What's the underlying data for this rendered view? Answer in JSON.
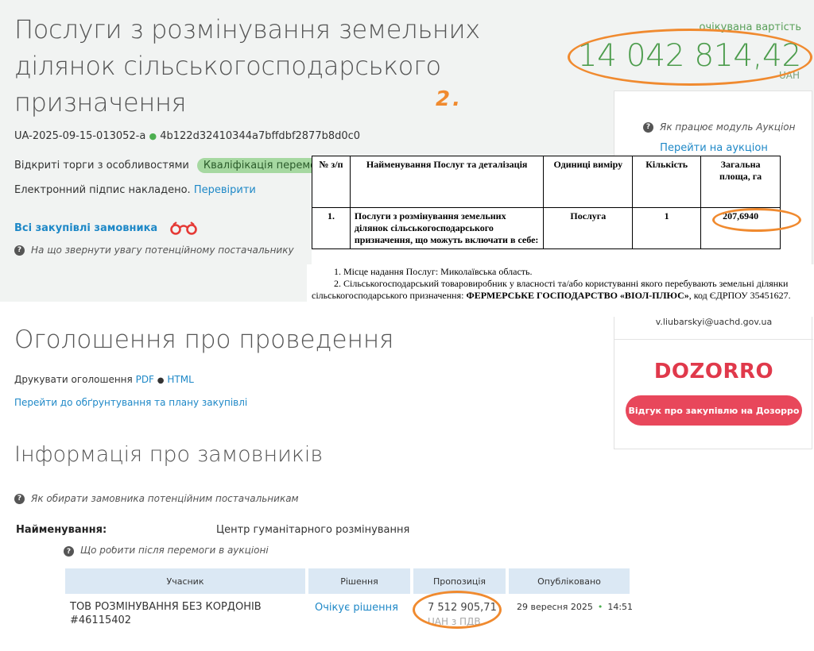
{
  "header": {
    "title": "Послуги з розмінування земельних ділянок сільськогосподарського призначення",
    "expected_label": "очікувана вартість",
    "price": "14 042 814,42",
    "currency": "UAH",
    "annotation_number": "2."
  },
  "tender": {
    "id": "UA-2025-09-15-013052-a",
    "hash": "4b122d32410344a7bffdbf2877b8d0c0",
    "procedure_type": "Відкриті торги з особливостями",
    "status_badge": "Кваліфікація переможця",
    "signature_text": "Електронний підпис накладено.",
    "signature_link": "Перевірити",
    "all_purchases": "Всі закупівлі замовника",
    "attention_hint": "На що звернути увагу потенційному постачальнику"
  },
  "side_card": {
    "how_auction": "Як працює модуль Аукціон",
    "go_auction": "Перейти на аукціон",
    "email": "v.liubarskyi@uachd.gov.ua",
    "dozorro_logo": "DOZORRO",
    "dozorro_button": "Відгук про закупівлю на Дозорро"
  },
  "doc_table": {
    "headers": [
      "№ з/п",
      "Найменування Послуг та деталізація",
      "Одиниці виміру",
      "Кількість",
      "Загальна площа, га"
    ],
    "row": {
      "num": "1.",
      "name": "Послуги з розмінування земельних ділянок сільськогосподарського призначення, що можуть включати в себе:",
      "unit": "Послуга",
      "qty": "1",
      "area": "207,6940"
    },
    "note1": "1. Місце надання Послуг: Миколаївська область.",
    "note2_prefix": "2. Сільськогосподарський товаровиробник у власності та/або користуванні якого перебувають земельні ділянки сільськогосподарського призначення: ",
    "note2_bold": "ФЕРМЕРСЬКЕ ГОСПОДАРСТВО «ВІОЛ-ПЛЮС»",
    "note2_suffix": ", код ЄДРПОУ 35451627."
  },
  "announcement": {
    "title": "Оголошення про проведення",
    "print_label": "Друкувати оголошення",
    "pdf": "PDF",
    "html": "HTML",
    "plan_link": "Перейти до обґрунтування та плану закупівлі"
  },
  "customers": {
    "title": "Інформація про замовників",
    "choose_hint": "Як обирати замовника потенційним постачальникам",
    "name_label": "Найменування:",
    "name_value": "Центр гуманітарного розмінування",
    "after_win_hint": "Що робити після перемоги в аукціоні"
  },
  "bids": {
    "headers": [
      "Учасник",
      "Рішення",
      "Пропозиція",
      "Опубліковано"
    ],
    "row": {
      "participant": "ТОВ РОЗМІНУВАННЯ БЕЗ КОРДОНІВ #46115402",
      "decision": "Очікує рішення",
      "amount": "7 512 905,71",
      "vat": "UAH з ПДВ",
      "date": "29 вересня 2025",
      "time": "14:51"
    }
  }
}
